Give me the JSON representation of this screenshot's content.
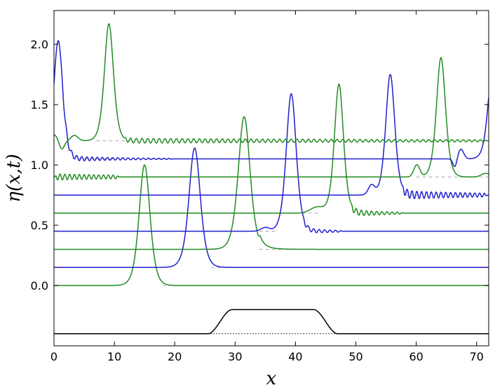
{
  "chart_data": {
    "type": "line",
    "title": "",
    "xlabel": "x",
    "ylabel": "η(x,t)",
    "xlim": [
      0,
      72
    ],
    "ylim": [
      -0.5,
      2.28
    ],
    "grid": false,
    "x_ticks": [
      0,
      10,
      20,
      30,
      40,
      50,
      60,
      70
    ],
    "x_tick_labels": [
      "0",
      "10",
      "20",
      "30",
      "40",
      "50",
      "60",
      "70"
    ],
    "y_ticks": [
      0.0,
      0.5,
      1.0,
      1.5,
      2.0
    ],
    "y_tick_labels": [
      "0.0",
      "0.5",
      "1.0",
      "1.5",
      "2.0"
    ],
    "colors": {
      "green": "#228B22",
      "blue": "#1f1fd0",
      "bottom": "#000000",
      "reference": "#aaaaaa"
    },
    "series": [
      {
        "color": "green",
        "baseline": 0.0,
        "dashed_reference": [
          18,
          26
        ],
        "components": [
          {
            "type": "pulse",
            "center": 15.0,
            "amplitude": 1.0,
            "width": 1.2
          }
        ]
      },
      {
        "color": "blue",
        "baseline": 0.15,
        "dashed_reference": [
          26,
          32
        ],
        "components": [
          {
            "type": "pulse",
            "center": 23.3,
            "amplitude": 0.99,
            "width": 1.25
          }
        ]
      },
      {
        "color": "green",
        "baseline": 0.3,
        "dashed_reference": [
          34,
          40
        ],
        "components": [
          {
            "type": "pulse",
            "center": 31.5,
            "amplitude": 1.1,
            "width": 1.3
          },
          {
            "type": "tail",
            "start": 33.8,
            "end": 35.5,
            "amplitude": 0.05,
            "decay": 0.7
          }
        ]
      },
      {
        "color": "blue",
        "baseline": 0.45,
        "dashed_reference": [
          34,
          37
        ],
        "components": [
          {
            "type": "pulse",
            "center": 39.3,
            "amplitude": 1.14,
            "width": 1.1
          },
          {
            "type": "bump",
            "center": 35.0,
            "amplitude": 0.03,
            "width": 1.0
          },
          {
            "type": "wave",
            "start": 41.0,
            "end": 48.0,
            "amplitude": 0.022,
            "period": 0.9,
            "decay": 0.18
          }
        ]
      },
      {
        "color": "green",
        "baseline": 0.6,
        "dashed_reference": [
          40,
          44
        ],
        "components": [
          {
            "type": "pulse",
            "center": 47.2,
            "amplitude": 1.07,
            "width": 1.0
          },
          {
            "type": "bump",
            "center": 43.6,
            "amplitude": 0.05,
            "width": 1.6
          },
          {
            "type": "wave",
            "start": 49.0,
            "end": 58.0,
            "amplitude": 0.03,
            "period": 0.85,
            "decay": 0.16
          }
        ]
      },
      {
        "color": "blue",
        "baseline": 0.75,
        "dashed_reference": [
          58,
          61
        ],
        "components": [
          {
            "type": "pulse",
            "center": 55.7,
            "amplitude": 1.0,
            "width": 1.0
          },
          {
            "type": "bump",
            "center": 52.6,
            "amplitude": 0.08,
            "width": 0.75
          },
          {
            "type": "wave",
            "start": 57.5,
            "end": 72.0,
            "amplitude": 0.035,
            "period": 0.8,
            "decay": 0.06
          }
        ]
      },
      {
        "color": "green",
        "baseline": 0.9,
        "dashed_reference": [
          60,
          72
        ],
        "components": [
          {
            "type": "pulse",
            "center": 64.1,
            "amplitude": 0.99,
            "width": 1.0
          },
          {
            "type": "bump",
            "center": 60.1,
            "amplitude": 0.1,
            "width": 0.7
          },
          {
            "type": "wave",
            "start": 0.0,
            "end": 11.0,
            "amplitude": 0.025,
            "period": 0.8,
            "decay": 0.05
          },
          {
            "type": "bump",
            "center": 71.5,
            "amplitude": 0.03,
            "width": 1.0
          }
        ]
      },
      {
        "color": "blue",
        "baseline": 1.05,
        "dashed_reference": [
          4,
          10
        ],
        "components": [
          {
            "type": "pulse",
            "center": 0.7,
            "amplitude": 0.98,
            "width": 1.0
          },
          {
            "type": "pulse",
            "center": 72.6,
            "amplitude": 0.72,
            "width": 1.0
          },
          {
            "type": "wave",
            "start": 1.0,
            "end": 20.0,
            "amplitude": 0.025,
            "period": 0.85,
            "decay": 0.1
          },
          {
            "type": "bump",
            "center": 67.4,
            "amplitude": 0.08,
            "width": 0.65
          },
          {
            "type": "dip",
            "center": 66.4,
            "amplitude": 0.07,
            "width": 0.45
          }
        ]
      },
      {
        "color": "green",
        "baseline": 1.2,
        "dashed_reference": [
          7,
          13
        ],
        "components": [
          {
            "type": "pulse",
            "center": 9.1,
            "amplitude": 0.97,
            "width": 1.0
          },
          {
            "type": "bump",
            "center": 0.0,
            "amplitude": 0.05,
            "width": 0.8
          },
          {
            "type": "dip",
            "center": 1.3,
            "amplitude": 0.07,
            "width": 0.6
          },
          {
            "type": "bump",
            "center": 3.4,
            "amplitude": 0.045,
            "width": 0.8
          },
          {
            "type": "wave",
            "start": 11.5,
            "end": 72.0,
            "amplitude": 0.02,
            "period": 0.95,
            "decay": 0.015
          }
        ]
      }
    ],
    "bottom_profile": {
      "color": "bottom",
      "base": -0.4,
      "plateau": -0.2,
      "rise": [
        25.5,
        29.5
      ],
      "fall": [
        43.0,
        47.0
      ],
      "dotted_reference": [
        25.0,
        47.0
      ]
    }
  }
}
